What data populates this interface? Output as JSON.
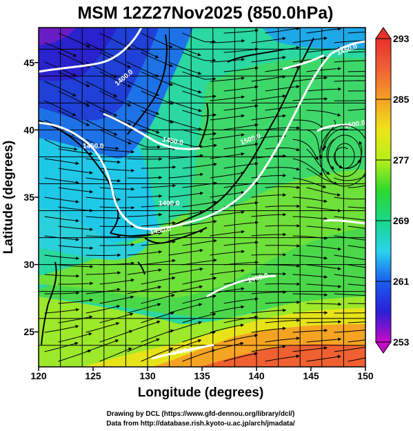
{
  "title": "MSM 12Z27Nov2025 (850.0hPa)",
  "x_axis": {
    "label": "Longitude (degrees)",
    "range": [
      120,
      150
    ],
    "ticks": [
      "120",
      "125",
      "130",
      "135",
      "140",
      "145",
      "150"
    ]
  },
  "y_axis": {
    "label": "Latitude  (degrees)",
    "range": [
      22.4,
      47.6
    ],
    "ticks": [
      "25",
      "30",
      "35",
      "40",
      "45"
    ]
  },
  "colorbar": {
    "range": [
      253,
      293
    ],
    "ticks": [
      "293",
      "285",
      "277",
      "269",
      "261",
      "253"
    ],
    "colors": [
      "#c60cc6",
      "#2a1ed6",
      "#1a5ef0",
      "#2ad2ee",
      "#18d888",
      "#2ed82e",
      "#b6f018",
      "#eee418",
      "#f6a022",
      "#f06038",
      "#e8302a"
    ]
  },
  "contours": {
    "color": "#ffffff",
    "labels": [
      "1400.0",
      "1450.0",
      "1450.0",
      "1400.0",
      "1450.0",
      "1500.0",
      "1450.0",
      "1500.0",
      "1450.0",
      "1400.0"
    ]
  },
  "credits": {
    "line1": "Drawing by DCL (https://www.gfd-dennou.org/library/dcl/)",
    "line2": "Data from http://database.rish.kyoto-u.ac.jp/arch/jmadata/"
  }
}
